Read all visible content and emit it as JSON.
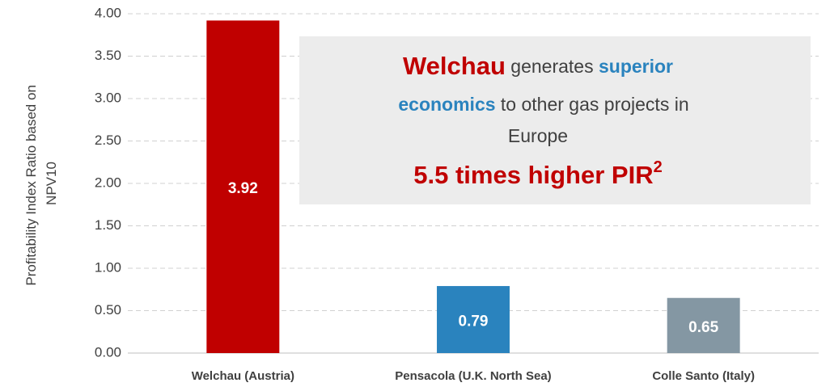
{
  "chart_data": {
    "type": "bar",
    "ylabel_lines": [
      "Profitability Index Ratio based on",
      "NPV10"
    ],
    "categories": [
      "Welchau (Austria)",
      "Pensacola (U.K. North Sea)",
      "Colle Santo (Italy)"
    ],
    "values": [
      3.92,
      0.79,
      0.65
    ],
    "colors": [
      "#c00000",
      "#2a83be",
      "#8497a3"
    ],
    "ylim": [
      0,
      4
    ],
    "yticks": [
      {
        "value": 0,
        "label": "0.00"
      },
      {
        "value": 0.5,
        "label": "0.50"
      },
      {
        "value": 1,
        "label": "1.00"
      },
      {
        "value": 1.5,
        "label": "1.50"
      },
      {
        "value": 2,
        "label": "2.00"
      },
      {
        "value": 2.5,
        "label": "2.50"
      },
      {
        "value": 3,
        "label": "3.00"
      },
      {
        "value": 3.5,
        "label": "3.50"
      },
      {
        "value": 4,
        "label": "4.00"
      }
    ],
    "grid": true,
    "annotation": {
      "name": "Welchau",
      "text1": " generates ",
      "highlight1": "superior",
      "highlight2": "economics",
      "text2": " to other gas projects in",
      "text3": "Europe",
      "headline": "5.5 times higher PIR",
      "superscript": "2"
    }
  }
}
